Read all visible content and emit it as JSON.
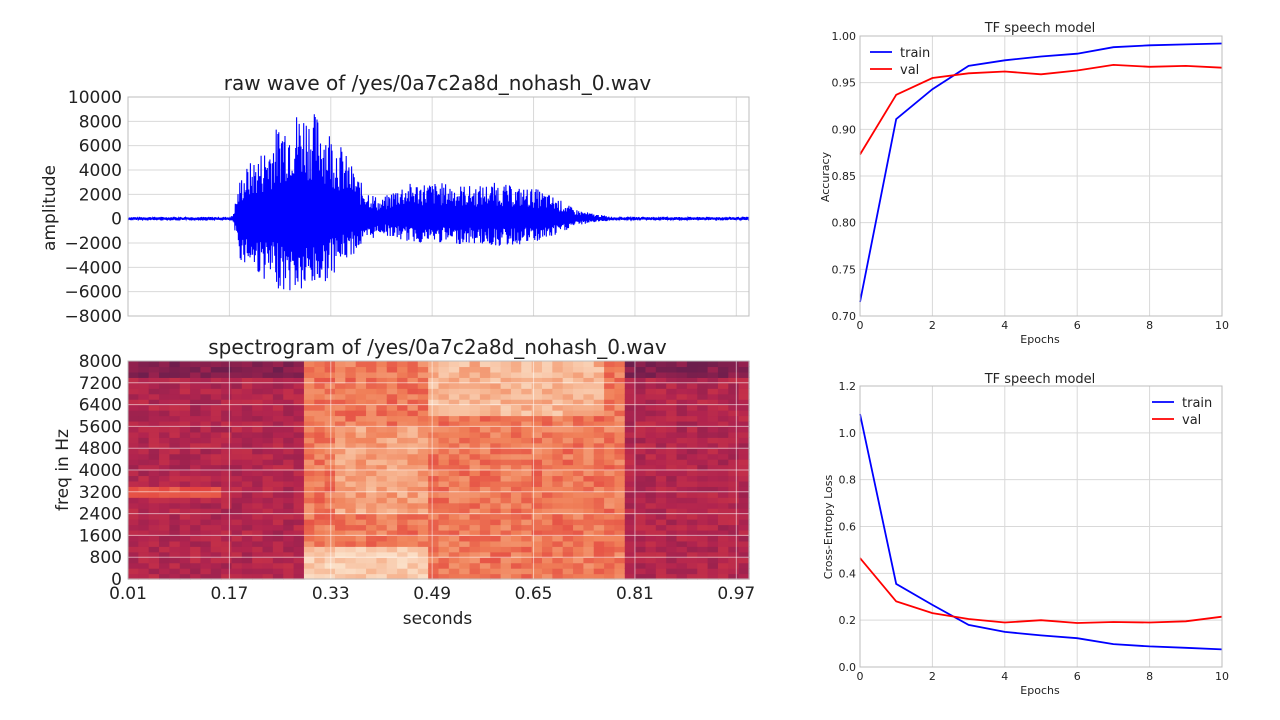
{
  "colors": {
    "train": "#0000ff",
    "val": "#ff0000",
    "wave": "#0000ff",
    "grid": "#d9d9d9",
    "axes": "#bcbcbc"
  },
  "chart_data": [
    {
      "id": "wave",
      "type": "line",
      "title": "raw wave of /yes/0a7c2a8d_nohash_0.wav",
      "xlabel": "",
      "ylabel": "amplitude",
      "xlim": [
        0,
        16000
      ],
      "ylim": [
        -8000,
        10000
      ],
      "yticks": [
        "10000",
        "8000",
        "6000",
        "4000",
        "2000",
        "0",
        "−2000",
        "−4000",
        "−6000",
        "−8000"
      ],
      "grid": true,
      "envelope": {
        "x": [
          0,
          2650,
          2700,
          2900,
          3100,
          3500,
          4000,
          4500,
          5000,
          5500,
          6000,
          6500,
          7000,
          7500,
          8000,
          8500,
          9000,
          9500,
          10000,
          10500,
          11000,
          11500,
          12000,
          12500,
          12800,
          13000,
          16000
        ],
        "upper": [
          150,
          150,
          300,
          3500,
          4500,
          5800,
          8500,
          9200,
          8500,
          6000,
          3000,
          1500,
          2800,
          3000,
          3000,
          2800,
          2700,
          3000,
          2600,
          2500,
          1800,
          800,
          400,
          150,
          150,
          150,
          150
        ],
        "lower": [
          -150,
          -150,
          -300,
          -3500,
          -3800,
          -5000,
          -6000,
          -6300,
          -5500,
          -3800,
          -2400,
          -1200,
          -1800,
          -2000,
          -2000,
          -2100,
          -2100,
          -2300,
          -2200,
          -2000,
          -1500,
          -600,
          -300,
          -150,
          -150,
          -150,
          -150
        ]
      }
    },
    {
      "id": "spectrogram",
      "type": "heatmap",
      "title": "spectrogram of /yes/0a7c2a8d_nohash_0.wav",
      "xlabel": "seconds",
      "ylabel": "freq in Hz",
      "xlim": [
        0.01,
        0.99
      ],
      "ylim": [
        0,
        8000
      ],
      "xticks": [
        0.01,
        0.17,
        0.33,
        0.49,
        0.65,
        0.81,
        0.97
      ],
      "xticklabels": [
        "0.01",
        "0.17",
        "0.33",
        "0.49",
        "0.65",
        "0.81",
        "0.97"
      ],
      "yticks": [
        0,
        800,
        1600,
        2400,
        3200,
        4000,
        4800,
        5600,
        6400,
        7200,
        8000
      ],
      "yticklabels": [
        "0",
        "800",
        "1600",
        "2400",
        "3200",
        "4000",
        "4800",
        "5600",
        "6400",
        "7200",
        "8000"
      ],
      "grid": true,
      "colormap": [
        "#2d1b3f",
        "#6e1e4d",
        "#b1244f",
        "#e2423f",
        "#f07f58",
        "#f6b08b",
        "#fbe0c8"
      ]
    },
    {
      "id": "accuracy",
      "type": "line",
      "title": "TF speech model",
      "xlabel": "Epochs",
      "ylabel": "Accuracy",
      "x": [
        0,
        1,
        2,
        3,
        4,
        5,
        6,
        7,
        8,
        9,
        10
      ],
      "xlim": [
        0,
        10
      ],
      "ylim": [
        0.7,
        1.0
      ],
      "xticks": [
        0,
        2,
        4,
        6,
        8,
        10
      ],
      "xticklabels": [
        "0",
        "2",
        "4",
        "6",
        "8",
        "10"
      ],
      "yticks": [
        0.7,
        0.75,
        0.8,
        0.85,
        0.9,
        0.95,
        1.0
      ],
      "yticklabels": [
        "0.70",
        "0.75",
        "0.80",
        "0.85",
        "0.90",
        "0.95",
        "1.00"
      ],
      "grid": true,
      "legend": "upper-left",
      "series": [
        {
          "name": "train",
          "values": [
            0.715,
            0.911,
            0.943,
            0.968,
            0.974,
            0.978,
            0.981,
            0.988,
            0.99,
            0.991,
            0.992
          ]
        },
        {
          "name": "val",
          "values": [
            0.873,
            0.937,
            0.955,
            0.96,
            0.962,
            0.959,
            0.963,
            0.969,
            0.967,
            0.968,
            0.966
          ]
        }
      ]
    },
    {
      "id": "loss",
      "type": "line",
      "title": "TF speech model",
      "xlabel": "Epochs",
      "ylabel": "Cross-Entropy Loss",
      "x": [
        0,
        1,
        2,
        3,
        4,
        5,
        6,
        7,
        8,
        9,
        10
      ],
      "xlim": [
        0,
        10
      ],
      "ylim": [
        0.0,
        1.2
      ],
      "xticks": [
        0,
        2,
        4,
        6,
        8,
        10
      ],
      "xticklabels": [
        "0",
        "2",
        "4",
        "6",
        "8",
        "10"
      ],
      "yticks": [
        0.0,
        0.2,
        0.4,
        0.6,
        0.8,
        1.0,
        1.2
      ],
      "yticklabels": [
        "0.0",
        "0.2",
        "0.4",
        "0.6",
        "0.8",
        "1.0",
        "1.2"
      ],
      "grid": true,
      "legend": "upper-right",
      "series": [
        {
          "name": "train",
          "values": [
            1.08,
            0.355,
            0.265,
            0.18,
            0.15,
            0.135,
            0.123,
            0.098,
            0.088,
            0.082,
            0.075
          ]
        },
        {
          "name": "val",
          "values": [
            0.465,
            0.28,
            0.23,
            0.205,
            0.19,
            0.2,
            0.188,
            0.192,
            0.19,
            0.195,
            0.215
          ]
        }
      ]
    }
  ]
}
